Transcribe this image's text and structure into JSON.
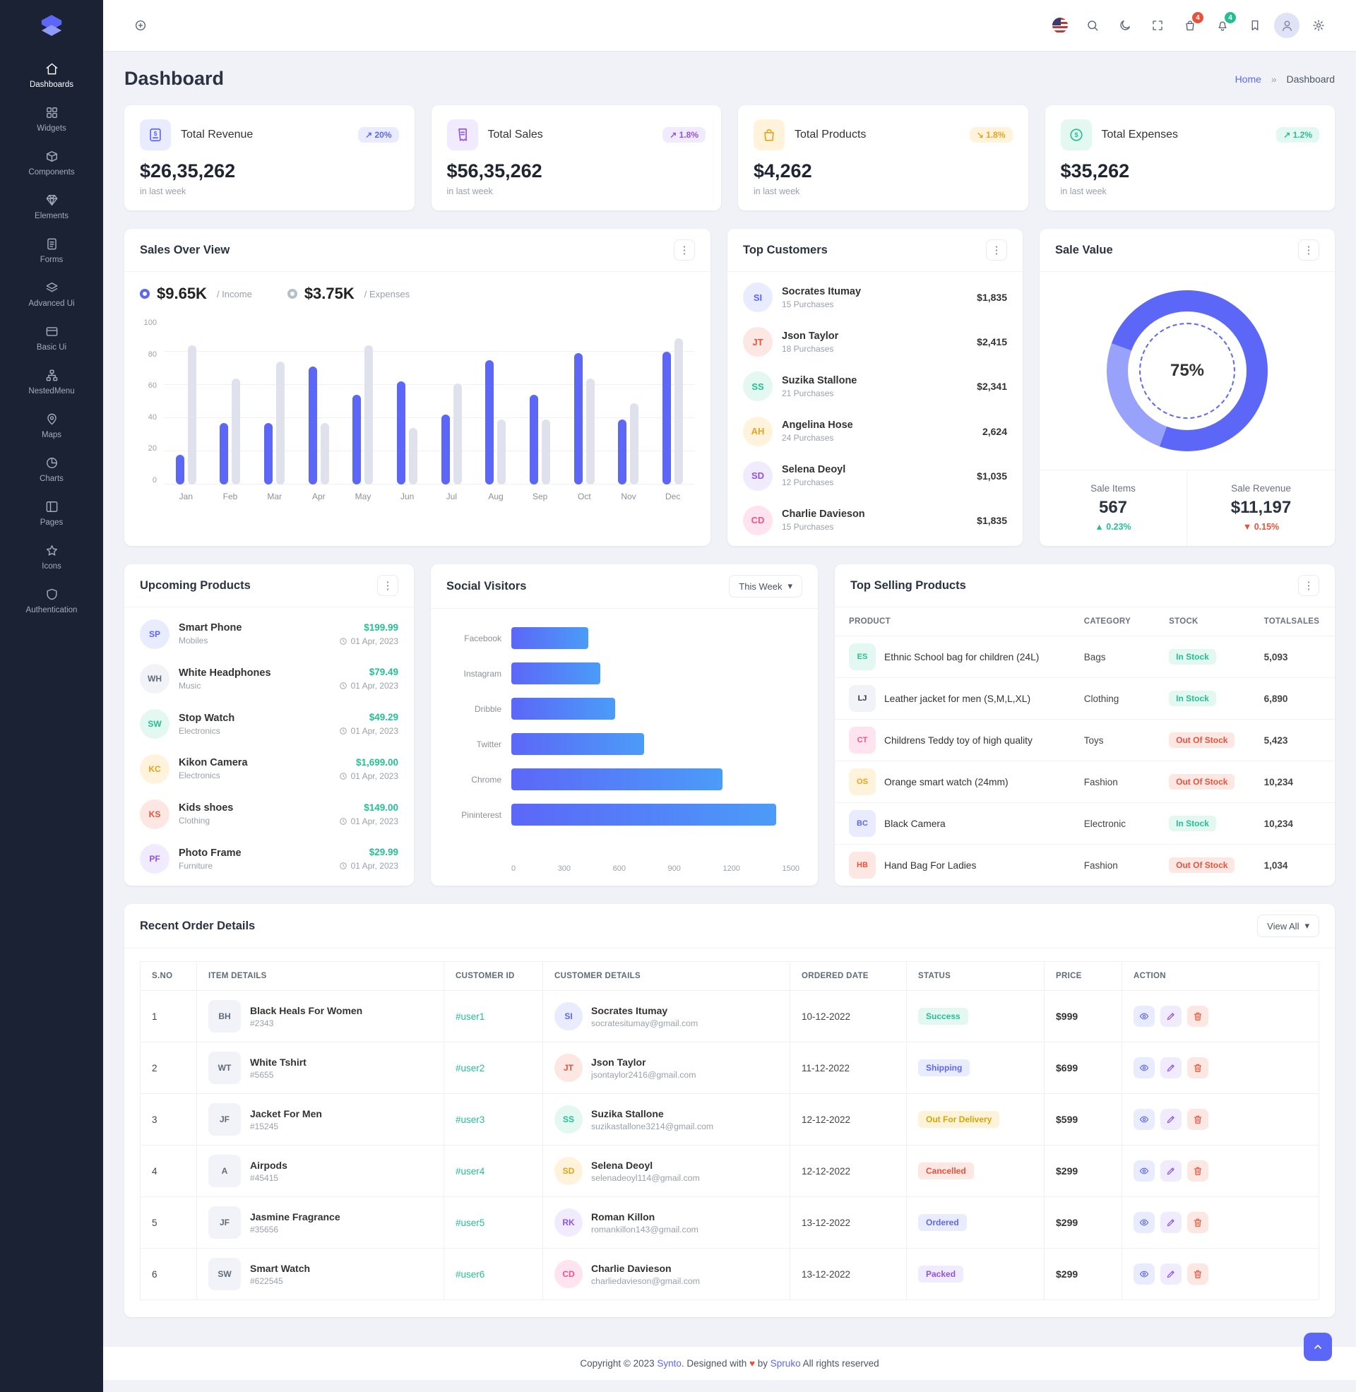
{
  "app": {
    "brand": "Synto"
  },
  "colors": {
    "primary": "#5c67f7",
    "secondary": "#8e54e9",
    "success": "#26bf94",
    "warning": "#f5b849",
    "danger": "#e6533c",
    "sidebar": "#1a2234"
  },
  "topbar": {
    "cart_badge": "4",
    "bell_badge": "4"
  },
  "sidebar": {
    "items": [
      {
        "label": "Dashboards",
        "icon": "i-home",
        "cls": "active"
      },
      {
        "label": "Widgets",
        "icon": "i-grid"
      },
      {
        "label": "Components",
        "icon": "i-box"
      },
      {
        "label": "Elements",
        "icon": "i-gem"
      },
      {
        "label": "Forms",
        "icon": "i-file"
      },
      {
        "label": "Advanced Ui",
        "icon": "i-layers"
      },
      {
        "label": "Basic Ui",
        "icon": "i-card"
      },
      {
        "label": "NestedMenu",
        "icon": "i-nested"
      },
      {
        "label": "Maps",
        "icon": "i-pin"
      },
      {
        "label": "Charts",
        "icon": "i-pie"
      },
      {
        "label": "Pages",
        "icon": "i-cols"
      },
      {
        "label": "Icons",
        "icon": "i-star"
      },
      {
        "label": "Authentication",
        "icon": "i-shield"
      }
    ]
  },
  "page": {
    "title": "Dashboard",
    "breadcrumb_home": "Home",
    "breadcrumb_sep": "»",
    "breadcrumb_current": "Dashboard"
  },
  "stats": [
    {
      "title": "Total Revenue",
      "value": "$26,35,262",
      "note": "in last week",
      "arrow": "↗",
      "badge": "20%",
      "tone": "tone-primary",
      "icon": "i-invoice"
    },
    {
      "title": "Total Sales",
      "value": "$56,35,262",
      "note": "in last week",
      "arrow": "↗",
      "badge": "1.8%",
      "tone": "tone-secondary",
      "icon": "i-receipt"
    },
    {
      "title": "Total Products",
      "value": "$4,262",
      "note": "in last week",
      "arrow": "↘",
      "badge": "1.8%",
      "tone": "tone-warning",
      "icon": "i-bag"
    },
    {
      "title": "Total Expenses",
      "value": "$35,262",
      "note": "in last week",
      "arrow": "↗",
      "badge": "1.2%",
      "tone": "tone-success",
      "icon": "i-coin"
    }
  ],
  "sales_overview": {
    "title": "Sales Over View",
    "legend": {
      "income_value": "$9.65K",
      "income_label": "/ Income",
      "expenses_value": "$3.75K",
      "expenses_label": "/ Expenses"
    },
    "chart_data": {
      "type": "bar",
      "ylim": [
        0,
        100
      ],
      "yticks": [
        {
          "v": "100"
        },
        {
          "v": "80"
        },
        {
          "v": "60"
        },
        {
          "v": "40"
        },
        {
          "v": "20"
        },
        {
          "v": "0"
        }
      ],
      "series_names": [
        "Income",
        "Expenses"
      ],
      "points": [
        {
          "month": "Jan",
          "income": 18,
          "expenses": 84
        },
        {
          "month": "Feb",
          "income": 37,
          "expenses": 64
        },
        {
          "month": "Mar",
          "income": 37,
          "expenses": 74
        },
        {
          "month": "Apr",
          "income": 71,
          "expenses": 37
        },
        {
          "month": "May",
          "income": 54,
          "expenses": 84
        },
        {
          "month": "Jun",
          "income": 62,
          "expenses": 34
        },
        {
          "month": "Jul",
          "income": 42,
          "expenses": 61
        },
        {
          "month": "Aug",
          "income": 75,
          "expenses": 39
        },
        {
          "month": "Sep",
          "income": 54,
          "expenses": 39
        },
        {
          "month": "Oct",
          "income": 79,
          "expenses": 64
        },
        {
          "month": "Nov",
          "income": 39,
          "expenses": 49
        },
        {
          "month": "Dec",
          "income": 80,
          "expenses": 88
        }
      ]
    }
  },
  "top_customers": {
    "title": "Top Customers",
    "items": [
      {
        "name": "Socrates Itumay",
        "purchases": "15 Purchases",
        "amount": "$1,835"
      },
      {
        "name": "Json Taylor",
        "purchases": "18 Purchases",
        "amount": "$2,415"
      },
      {
        "name": "Suzika Stallone",
        "purchases": "21 Purchases",
        "amount": "$2,341"
      },
      {
        "name": "Angelina Hose",
        "purchases": "24 Purchases",
        "amount": "2,624"
      },
      {
        "name": "Selena Deoyl",
        "purchases": "12 Purchases",
        "amount": "$1,035"
      },
      {
        "name": "Charlie Davieson",
        "purchases": "15 Purchases",
        "amount": "$1,835"
      }
    ]
  },
  "sale_value": {
    "title": "Sale Value",
    "chart_data": {
      "type": "donut",
      "percent": 75,
      "label": "75%"
    },
    "items_label": "Sale Items",
    "items_value": "567",
    "items_arrow": "▲",
    "items_change": "0.23%",
    "revenue_label": "Sale Revenue",
    "revenue_value": "$11,197",
    "revenue_arrow": "▼",
    "revenue_change": "0.15%"
  },
  "upcoming_products": {
    "title": "Upcoming Products",
    "items": [
      {
        "name": "Smart Phone",
        "category": "Mobiles",
        "price": "$199.99",
        "date": "01 Apr, 2023"
      },
      {
        "name": "White Headphones",
        "category": "Music",
        "price": "$79.49",
        "date": "01 Apr, 2023"
      },
      {
        "name": "Stop Watch",
        "category": "Electronics",
        "price": "$49.29",
        "date": "01 Apr, 2023"
      },
      {
        "name": "Kikon Camera",
        "category": "Electronics",
        "price": "$1,699.00",
        "date": "01 Apr, 2023"
      },
      {
        "name": "Kids shoes",
        "category": "Clothing",
        "price": "$149.00",
        "date": "01 Apr, 2023"
      },
      {
        "name": "Photo Frame",
        "category": "Furniture",
        "price": "$29.99",
        "date": "01 Apr, 2023"
      }
    ]
  },
  "social_visitors": {
    "title": "Social Visitors",
    "filter": "This Week",
    "filter_caret": "▾",
    "chart_data": {
      "type": "bar",
      "orientation": "horizontal",
      "xlim": [
        0,
        1500
      ],
      "xticks": [
        {
          "v": "0"
        },
        {
          "v": "300"
        },
        {
          "v": "600"
        },
        {
          "v": "900"
        },
        {
          "v": "1200"
        },
        {
          "v": "1500"
        }
      ],
      "points": [
        {
          "label": "Facebook",
          "value": 400
        },
        {
          "label": "Instagram",
          "value": 465
        },
        {
          "label": "Dribble",
          "value": 540
        },
        {
          "label": "Twitter",
          "value": 690
        },
        {
          "label": "Chrome",
          "value": 1100
        },
        {
          "label": "Pininterest",
          "value": 1380
        }
      ]
    }
  },
  "top_selling": {
    "title": "Top Selling Products",
    "columns": [
      {
        "v": "PRODUCT"
      },
      {
        "v": "CATEGORY"
      },
      {
        "v": "STOCK"
      },
      {
        "v": "TOTALSALES"
      }
    ],
    "rows": [
      {
        "product": "Ethnic School bag for children (24L)",
        "category": "Bags",
        "stock": "In Stock",
        "stock_cls": "b-instock",
        "total": "5,093"
      },
      {
        "product": "Leather jacket for men (S,M,L,XL)",
        "category": "Clothing",
        "stock": "In Stock",
        "stock_cls": "b-instock",
        "total": "6,890"
      },
      {
        "product": "Childrens Teddy toy of high quality",
        "category": "Toys",
        "stock": "Out Of Stock",
        "stock_cls": "b-outstock",
        "total": "5,423"
      },
      {
        "product": "Orange smart watch (24mm)",
        "category": "Fashion",
        "stock": "Out Of Stock",
        "stock_cls": "b-outstock",
        "total": "10,234"
      },
      {
        "product": "Black Camera",
        "category": "Electronic",
        "stock": "In Stock",
        "stock_cls": "b-instock",
        "total": "10,234"
      },
      {
        "product": "Hand Bag For Ladies",
        "category": "Fashion",
        "stock": "Out Of Stock",
        "stock_cls": "b-outstock",
        "total": "1,034"
      }
    ]
  },
  "recent_orders": {
    "title": "Recent Order Details",
    "view_all": "View All",
    "view_caret": "▾",
    "columns": [
      {
        "v": "S.NO"
      },
      {
        "v": "ITEM DETAILS"
      },
      {
        "v": "CUSTOMER ID"
      },
      {
        "v": "CUSTOMER DETAILS"
      },
      {
        "v": "ORDERED DATE"
      },
      {
        "v": "STATUS"
      },
      {
        "v": "PRICE"
      },
      {
        "v": "ACTION"
      }
    ],
    "rows": [
      {
        "sno": "1",
        "item": "Black Heals For Women",
        "item_id": "#2343",
        "customer_id": "#user1",
        "customer": "Socrates Itumay",
        "email": "socratesitumay@gmail.com",
        "date": "10-12-2022",
        "status": "Success",
        "status_cls": "st-success",
        "price": "$999"
      },
      {
        "sno": "2",
        "item": "White Tshirt",
        "item_id": "#5655",
        "customer_id": "#user2",
        "customer": "Json Taylor",
        "email": "jsontaylor2416@gmail.com",
        "date": "11-12-2022",
        "status": "Shipping",
        "status_cls": "st-shipping",
        "price": "$699"
      },
      {
        "sno": "3",
        "item": "Jacket For Men",
        "item_id": "#15245",
        "customer_id": "#user3",
        "customer": "Suzika Stallone",
        "email": "suzikastallone3214@gmail.com",
        "date": "12-12-2022",
        "status": "Out For Delivery",
        "status_cls": "st-delivery",
        "price": "$599"
      },
      {
        "sno": "4",
        "item": "Airpods",
        "item_id": "#45415",
        "customer_id": "#user4",
        "customer": "Selena Deoyl",
        "email": "selenadeoyl114@gmail.com",
        "date": "12-12-2022",
        "status": "Cancelled",
        "status_cls": "st-cancel",
        "price": "$299"
      },
      {
        "sno": "5",
        "item": "Jasmine Fragrance",
        "item_id": "#35656",
        "customer_id": "#user5",
        "customer": "Roman Killon",
        "email": "romankillon143@gmail.com",
        "date": "13-12-2022",
        "status": "Ordered",
        "status_cls": "st-ordered",
        "price": "$299"
      },
      {
        "sno": "6",
        "item": "Smart Watch",
        "item_id": "#622545",
        "customer_id": "#user6",
        "customer": "Charlie Davieson",
        "email": "charliedavieson@gmail.com",
        "date": "13-12-2022",
        "status": "Packed",
        "status_cls": "st-packed",
        "price": "$299"
      }
    ]
  },
  "footer": {
    "prefix": "Copyright © 2023",
    "brand": "Synto",
    "mid": ". Designed with",
    "heart": "♥",
    "by": "by",
    "designer": "Spruko",
    "suffix": "All rights reserved"
  }
}
